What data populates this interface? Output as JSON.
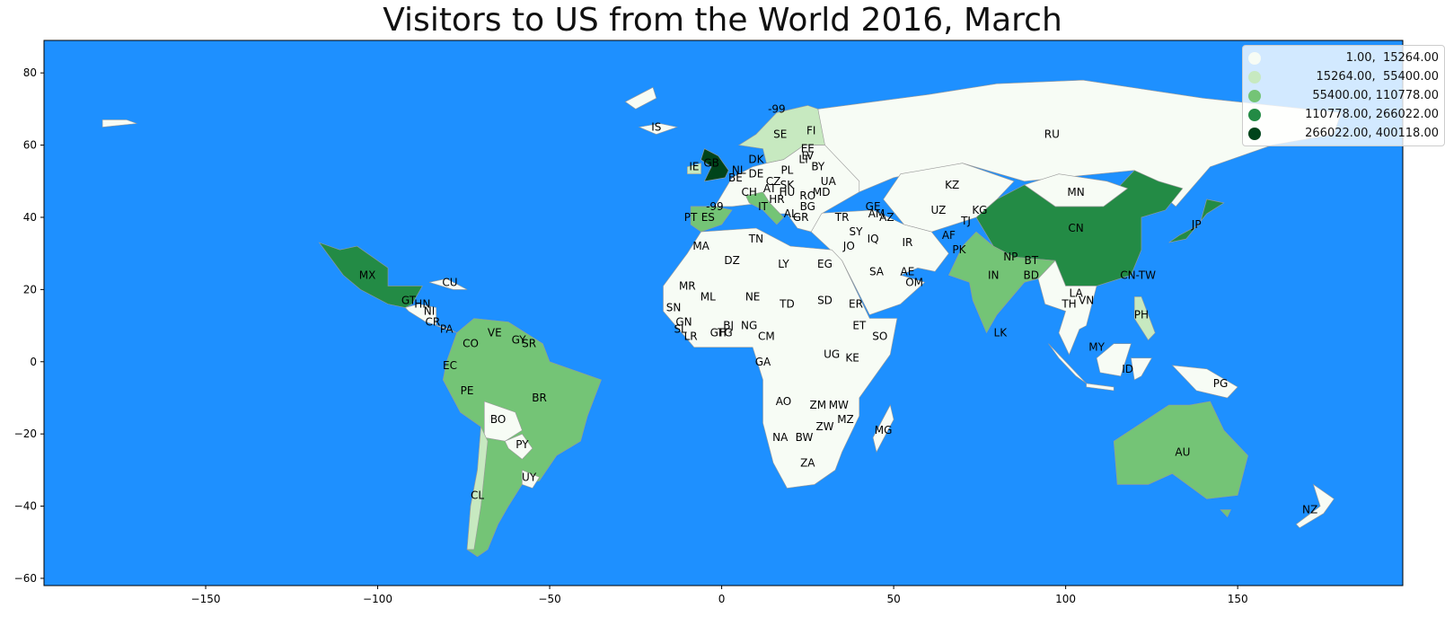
{
  "title": "Visitors to US from the World 2016, March",
  "colors": {
    "ocean": "#1e90ff",
    "border": "#999999",
    "classes": [
      "#f7fcf5",
      "#c7e9c0",
      "#74c476",
      "#238b45",
      "#00441b"
    ]
  },
  "axes": {
    "x_ticks": [
      -150,
      -100,
      -50,
      0,
      50,
      100,
      150
    ],
    "y_ticks": [
      80,
      60,
      40,
      20,
      0,
      -20,
      -40,
      -60
    ],
    "xlim": [
      -197,
      198
    ],
    "ylim": [
      -62,
      89
    ]
  },
  "legend": {
    "placement": "top-right",
    "entries": [
      {
        "label": "1.00,  15264.00",
        "class": 0
      },
      {
        "label": "15264.00,  55400.00",
        "class": 1
      },
      {
        "label": "55400.00, 110778.00",
        "class": 2
      },
      {
        "label": "110778.00, 266022.00",
        "class": 3
      },
      {
        "label": "266022.00, 400118.00",
        "class": 4
      }
    ]
  },
  "chart_data": {
    "type": "choropleth",
    "title": "Visitors to US from the World 2016, March",
    "xlim": [
      -197,
      198
    ],
    "ylim": [
      -62,
      89
    ],
    "grid": false,
    "legend_placement": "top-right",
    "country_labels": [
      {
        "code": "RU",
        "lon": 96,
        "lat": 63,
        "class": 0
      },
      {
        "code": "MN",
        "lon": 103,
        "lat": 47,
        "class": 0
      },
      {
        "code": "CN",
        "lon": 103,
        "lat": 37,
        "class": 3
      },
      {
        "code": "CN-TW",
        "lon": 121,
        "lat": 24,
        "class": 0
      },
      {
        "code": "JP",
        "lon": 138,
        "lat": 38,
        "class": 3
      },
      {
        "code": "KZ",
        "lon": 67,
        "lat": 49,
        "class": 0
      },
      {
        "code": "UZ",
        "lon": 63,
        "lat": 42,
        "class": 0
      },
      {
        "code": "KG",
        "lon": 75,
        "lat": 42,
        "class": 0
      },
      {
        "code": "TJ",
        "lon": 71,
        "lat": 39,
        "class": 0
      },
      {
        "code": "AF",
        "lon": 66,
        "lat": 35,
        "class": 0
      },
      {
        "code": "PK",
        "lon": 69,
        "lat": 31,
        "class": 0
      },
      {
        "code": "IN",
        "lon": 79,
        "lat": 24,
        "class": 2
      },
      {
        "code": "NP",
        "lon": 84,
        "lat": 29,
        "class": 0
      },
      {
        "code": "BT",
        "lon": 90,
        "lat": 28,
        "class": 0
      },
      {
        "code": "BD",
        "lon": 90,
        "lat": 24,
        "class": 0
      },
      {
        "code": "LK",
        "lon": 81,
        "lat": 8,
        "class": 0
      },
      {
        "code": "LA",
        "lon": 103,
        "lat": 19,
        "class": 0
      },
      {
        "code": "TH",
        "lon": 101,
        "lat": 16,
        "class": 0
      },
      {
        "code": "VN",
        "lon": 106,
        "lat": 17,
        "class": 0
      },
      {
        "code": "PH",
        "lon": 122,
        "lat": 13,
        "class": 1
      },
      {
        "code": "MY",
        "lon": 109,
        "lat": 4,
        "class": 0
      },
      {
        "code": "ID",
        "lon": 118,
        "lat": -2,
        "class": 0
      },
      {
        "code": "PG",
        "lon": 145,
        "lat": -6,
        "class": 0
      },
      {
        "code": "AU",
        "lon": 134,
        "lat": -25,
        "class": 2
      },
      {
        "code": "NZ",
        "lon": 171,
        "lat": -41,
        "class": 0
      },
      {
        "code": "IR",
        "lon": 54,
        "lat": 33,
        "class": 0
      },
      {
        "code": "IQ",
        "lon": 44,
        "lat": 34,
        "class": 0
      },
      {
        "code": "SY",
        "lon": 39,
        "lat": 36,
        "class": 0
      },
      {
        "code": "JO",
        "lon": 37,
        "lat": 32,
        "class": 0
      },
      {
        "code": "SA",
        "lon": 45,
        "lat": 25,
        "class": 0
      },
      {
        "code": "AE",
        "lon": 54,
        "lat": 25,
        "class": 0
      },
      {
        "code": "OM",
        "lon": 56,
        "lat": 22,
        "class": 0
      },
      {
        "code": "TR",
        "lon": 35,
        "lat": 40,
        "class": 0
      },
      {
        "code": "GE",
        "lon": 44,
        "lat": 43,
        "class": 0
      },
      {
        "code": "AM",
        "lon": 45,
        "lat": 41,
        "class": 0
      },
      {
        "code": "AZ",
        "lon": 48,
        "lat": 40,
        "class": 0
      },
      {
        "code": "FI",
        "lon": 26,
        "lat": 64,
        "class": 0
      },
      {
        "code": "SE",
        "lon": 17,
        "lat": 63,
        "class": 1
      },
      {
        "code": "-99",
        "lon": 16,
        "lat": 70,
        "class": 0
      },
      {
        "code": "EE",
        "lon": 25,
        "lat": 59,
        "class": 0
      },
      {
        "code": "LV",
        "lon": 25,
        "lat": 57,
        "class": 0
      },
      {
        "code": "LT",
        "lon": 24,
        "lat": 56,
        "class": 0
      },
      {
        "code": "BY",
        "lon": 28,
        "lat": 54,
        "class": 0
      },
      {
        "code": "DK",
        "lon": 10,
        "lat": 56,
        "class": 1
      },
      {
        "code": "PL",
        "lon": 19,
        "lat": 53,
        "class": 0
      },
      {
        "code": "DE",
        "lon": 10,
        "lat": 52,
        "class": 0
      },
      {
        "code": "NL",
        "lon": 5,
        "lat": 53,
        "class": 1
      },
      {
        "code": "BE",
        "lon": 4,
        "lat": 51,
        "class": 0
      },
      {
        "code": "GB",
        "lon": -3,
        "lat": 55,
        "class": 4
      },
      {
        "code": "IE",
        "lon": -8,
        "lat": 54,
        "class": 1
      },
      {
        "code": "UA",
        "lon": 31,
        "lat": 50,
        "class": 0
      },
      {
        "code": "SK",
        "lon": 19,
        "lat": 49,
        "class": 0
      },
      {
        "code": "CZ",
        "lon": 15,
        "lat": 50,
        "class": 0
      },
      {
        "code": "AT",
        "lon": 14,
        "lat": 48,
        "class": 0
      },
      {
        "code": "HU",
        "lon": 19,
        "lat": 47,
        "class": 0
      },
      {
        "code": "MD",
        "lon": 29,
        "lat": 47,
        "class": 0
      },
      {
        "code": "RO",
        "lon": 25,
        "lat": 46,
        "class": 0
      },
      {
        "code": "CH",
        "lon": 8,
        "lat": 47,
        "class": 2
      },
      {
        "code": "HR",
        "lon": 16,
        "lat": 45,
        "class": 0
      },
      {
        "code": "BG",
        "lon": 25,
        "lat": 43,
        "class": 0
      },
      {
        "code": "IT",
        "lon": 12,
        "lat": 43,
        "class": 2
      },
      {
        "code": "-99",
        "lon": -2,
        "lat": 43,
        "class": 2
      },
      {
        "code": "ES",
        "lon": -4,
        "lat": 40,
        "class": 2
      },
      {
        "code": "PT",
        "lon": -9,
        "lat": 40,
        "class": 0
      },
      {
        "code": "AL",
        "lon": 20,
        "lat": 41,
        "class": 0
      },
      {
        "code": "GR",
        "lon": 23,
        "lat": 40,
        "class": 0
      },
      {
        "code": "IS",
        "lon": -19,
        "lat": 65,
        "class": 0
      },
      {
        "code": "MA",
        "lon": -6,
        "lat": 32,
        "class": 0
      },
      {
        "code": "DZ",
        "lon": 3,
        "lat": 28,
        "class": 0
      },
      {
        "code": "TN",
        "lon": 10,
        "lat": 34,
        "class": 0
      },
      {
        "code": "LY",
        "lon": 18,
        "lat": 27,
        "class": 0
      },
      {
        "code": "EG",
        "lon": 30,
        "lat": 27,
        "class": 0
      },
      {
        "code": "MR",
        "lon": -10,
        "lat": 21,
        "class": 0
      },
      {
        "code": "ML",
        "lon": -4,
        "lat": 18,
        "class": 0
      },
      {
        "code": "NE",
        "lon": 9,
        "lat": 18,
        "class": 0
      },
      {
        "code": "TD",
        "lon": 19,
        "lat": 16,
        "class": 0
      },
      {
        "code": "SD",
        "lon": 30,
        "lat": 17,
        "class": 0
      },
      {
        "code": "ER",
        "lon": 39,
        "lat": 16,
        "class": 0
      },
      {
        "code": "SN",
        "lon": -14,
        "lat": 15,
        "class": 0
      },
      {
        "code": "GN",
        "lon": -11,
        "lat": 11,
        "class": 0
      },
      {
        "code": "SL",
        "lon": -12,
        "lat": 9,
        "class": 0
      },
      {
        "code": "LR",
        "lon": -9,
        "lat": 7,
        "class": 0
      },
      {
        "code": "GH",
        "lon": -1,
        "lat": 8,
        "class": 0
      },
      {
        "code": "TG",
        "lon": 1,
        "lat": 8,
        "class": 0
      },
      {
        "code": "BJ",
        "lon": 2,
        "lat": 10,
        "class": 0
      },
      {
        "code": "NG",
        "lon": 8,
        "lat": 10,
        "class": 0
      },
      {
        "code": "CM",
        "lon": 13,
        "lat": 7,
        "class": 0
      },
      {
        "code": "ET",
        "lon": 40,
        "lat": 10,
        "class": 0
      },
      {
        "code": "SO",
        "lon": 46,
        "lat": 7,
        "class": 0
      },
      {
        "code": "GA",
        "lon": 12,
        "lat": 0,
        "class": 0
      },
      {
        "code": "UG",
        "lon": 32,
        "lat": 2,
        "class": 0
      },
      {
        "code": "KE",
        "lon": 38,
        "lat": 1,
        "class": 0
      },
      {
        "code": "AO",
        "lon": 18,
        "lat": -11,
        "class": 0
      },
      {
        "code": "ZM",
        "lon": 28,
        "lat": -12,
        "class": 0
      },
      {
        "code": "MW",
        "lon": 34,
        "lat": -12,
        "class": 0
      },
      {
        "code": "MZ",
        "lon": 36,
        "lat": -16,
        "class": 0
      },
      {
        "code": "ZW",
        "lon": 30,
        "lat": -18,
        "class": 0
      },
      {
        "code": "MG",
        "lon": 47,
        "lat": -19,
        "class": 0
      },
      {
        "code": "NA",
        "lon": 17,
        "lat": -21,
        "class": 0
      },
      {
        "code": "BW",
        "lon": 24,
        "lat": -21,
        "class": 0
      },
      {
        "code": "ZA",
        "lon": 25,
        "lat": -28,
        "class": 0
      },
      {
        "code": "MX",
        "lon": -103,
        "lat": 24,
        "class": 3
      },
      {
        "code": "CU",
        "lon": -79,
        "lat": 22,
        "class": 0
      },
      {
        "code": "GT",
        "lon": -91,
        "lat": 17,
        "class": 0
      },
      {
        "code": "HN",
        "lon": -87,
        "lat": 16,
        "class": 0
      },
      {
        "code": "NI",
        "lon": -85,
        "lat": 14,
        "class": 0
      },
      {
        "code": "CR",
        "lon": -84,
        "lat": 11,
        "class": 0
      },
      {
        "code": "PA",
        "lon": -80,
        "lat": 9,
        "class": 0
      },
      {
        "code": "VE",
        "lon": -66,
        "lat": 8,
        "class": 1
      },
      {
        "code": "CO",
        "lon": -73,
        "lat": 5,
        "class": 2
      },
      {
        "code": "GY",
        "lon": -59,
        "lat": 6,
        "class": 1
      },
      {
        "code": "SR",
        "lon": -56,
        "lat": 5,
        "class": 0
      },
      {
        "code": "EC",
        "lon": -79,
        "lat": -1,
        "class": 1
      },
      {
        "code": "PE",
        "lon": -74,
        "lat": -8,
        "class": 1
      },
      {
        "code": "BR",
        "lon": -53,
        "lat": -10,
        "class": 2
      },
      {
        "code": "BO",
        "lon": -65,
        "lat": -16,
        "class": 0
      },
      {
        "code": "PY",
        "lon": -58,
        "lat": -23,
        "class": 0
      },
      {
        "code": "UY",
        "lon": -56,
        "lat": -32,
        "class": 0
      },
      {
        "code": "CL",
        "lon": -71,
        "lat": -37,
        "class": 1
      }
    ]
  }
}
